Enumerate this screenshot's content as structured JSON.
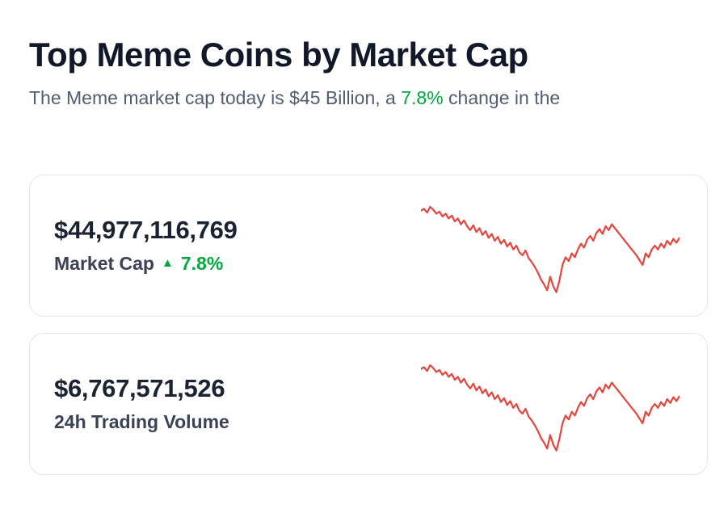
{
  "page": {
    "title": "Top Meme Coins by Market Cap",
    "subtitle_part1": "The Meme market cap today is $45 Billion, a ",
    "subtitle_highlight": "7.8%",
    "subtitle_part2": " change in the"
  },
  "cards": [
    {
      "value": "$44,977,116,769",
      "label": "Market Cap",
      "change_icon": "▲",
      "change": "7.8%"
    },
    {
      "value": "$6,767,571,526",
      "label": "24h Trading Volume"
    }
  ],
  "colors": {
    "accent_green": "#00a83e",
    "spark_red": "#e2463c",
    "title_dark": "#111827",
    "subtitle_gray": "#525d71"
  },
  "chart_data": {
    "type": "line",
    "title": "",
    "xlabel": "",
    "ylabel": "",
    "grid": false,
    "axes_visible": false,
    "legend": false,
    "ylim": [
      0,
      1
    ],
    "color": "#e2463c",
    "series": [
      {
        "name": "market-cap-sparkline",
        "values": [
          0.86,
          0.88,
          0.84,
          0.9,
          0.87,
          0.83,
          0.85,
          0.8,
          0.83,
          0.78,
          0.81,
          0.75,
          0.78,
          0.72,
          0.76,
          0.7,
          0.66,
          0.71,
          0.64,
          0.68,
          0.61,
          0.65,
          0.58,
          0.62,
          0.55,
          0.59,
          0.52,
          0.56,
          0.49,
          0.53,
          0.46,
          0.5,
          0.43,
          0.4,
          0.45,
          0.37,
          0.33,
          0.28,
          0.22,
          0.15,
          0.1,
          0.04,
          0.18,
          0.08,
          0.02,
          0.14,
          0.3,
          0.38,
          0.34,
          0.42,
          0.38,
          0.46,
          0.52,
          0.48,
          0.56,
          0.6,
          0.55,
          0.63,
          0.67,
          0.62,
          0.7,
          0.66,
          0.72,
          0.68,
          0.64,
          0.6,
          0.56,
          0.52,
          0.48,
          0.44,
          0.4,
          0.35,
          0.3,
          0.42,
          0.38,
          0.46,
          0.5,
          0.46,
          0.52,
          0.48,
          0.55,
          0.51,
          0.57,
          0.53,
          0.58
        ]
      },
      {
        "name": "volume-sparkline",
        "values": [
          0.86,
          0.88,
          0.84,
          0.9,
          0.87,
          0.83,
          0.85,
          0.8,
          0.83,
          0.78,
          0.81,
          0.75,
          0.78,
          0.72,
          0.76,
          0.7,
          0.66,
          0.71,
          0.64,
          0.68,
          0.61,
          0.65,
          0.58,
          0.62,
          0.55,
          0.59,
          0.52,
          0.56,
          0.49,
          0.53,
          0.46,
          0.5,
          0.43,
          0.4,
          0.45,
          0.37,
          0.33,
          0.28,
          0.22,
          0.15,
          0.1,
          0.04,
          0.18,
          0.08,
          0.02,
          0.14,
          0.3,
          0.38,
          0.34,
          0.42,
          0.38,
          0.46,
          0.52,
          0.48,
          0.56,
          0.6,
          0.55,
          0.63,
          0.67,
          0.62,
          0.7,
          0.66,
          0.72,
          0.68,
          0.64,
          0.6,
          0.56,
          0.52,
          0.48,
          0.44,
          0.4,
          0.35,
          0.3,
          0.42,
          0.38,
          0.46,
          0.5,
          0.46,
          0.52,
          0.48,
          0.55,
          0.51,
          0.57,
          0.53,
          0.58
        ]
      }
    ]
  }
}
